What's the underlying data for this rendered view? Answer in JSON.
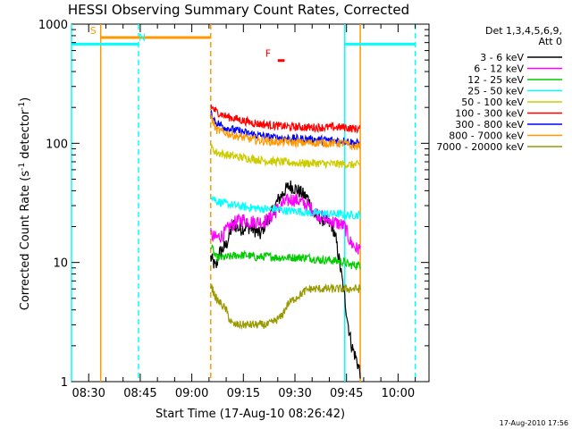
{
  "chart_data": {
    "type": "line",
    "title": "HESSI Observing Summary Count Rates, Corrected",
    "xlabel": "Start Time (17-Aug-10 08:26:42)",
    "ylabel_main": "Corrected Count Rate (s",
    "ylabel_sup1": "-1",
    "ylabel_mid": " detector",
    "ylabel_sup2": "-1",
    "ylabel_end": ")",
    "yscale": "log",
    "ylim": [
      1,
      1000
    ],
    "xlim_minutes": [
      505,
      609
    ],
    "x_ticks": [
      {
        "m": 510,
        "label": "08:30"
      },
      {
        "m": 525,
        "label": "08:45"
      },
      {
        "m": 540,
        "label": "09:00"
      },
      {
        "m": 555,
        "label": "09:15"
      },
      {
        "m": 570,
        "label": "09:30"
      },
      {
        "m": 585,
        "label": "09:45"
      },
      {
        "m": 600,
        "label": "10:00"
      }
    ],
    "y_ticks": [
      {
        "v": 1,
        "label": "1"
      },
      {
        "v": 10,
        "label": "10"
      },
      {
        "v": 100,
        "label": "100"
      },
      {
        "v": 1000,
        "label": "1000"
      }
    ],
    "legend_header": [
      "Det 1,3,4,5,6,9,",
      "Att 0"
    ],
    "series": [
      {
        "name": "3 - 6 keV",
        "color": "#000000",
        "points": [
          [
            545.5,
            11
          ],
          [
            547,
            9
          ],
          [
            548,
            12
          ],
          [
            550,
            14
          ],
          [
            552,
            21
          ],
          [
            554,
            19
          ],
          [
            556,
            20
          ],
          [
            558,
            19
          ],
          [
            560,
            17
          ],
          [
            561,
            20
          ],
          [
            563,
            25
          ],
          [
            565,
            33
          ],
          [
            567,
            40
          ],
          [
            568.5,
            44
          ],
          [
            570,
            42
          ],
          [
            572,
            38
          ],
          [
            574,
            34
          ],
          [
            575,
            26
          ],
          [
            577,
            24
          ],
          [
            579,
            22
          ],
          [
            581,
            20
          ],
          [
            582,
            15
          ],
          [
            583,
            10
          ],
          [
            584.5,
            5
          ],
          [
            585.5,
            3
          ],
          [
            586.5,
            2
          ],
          [
            588,
            1.5
          ],
          [
            589,
            1.2
          ]
        ]
      },
      {
        "name": "6 - 12 keV",
        "color": "#ff00ff",
        "points": [
          [
            545.5,
            17
          ],
          [
            547,
            16
          ],
          [
            549,
            17
          ],
          [
            551,
            20
          ],
          [
            553,
            22
          ],
          [
            555,
            23
          ],
          [
            557,
            22
          ],
          [
            559,
            22
          ],
          [
            561,
            22
          ],
          [
            563,
            24
          ],
          [
            565,
            28
          ],
          [
            567,
            32
          ],
          [
            569,
            34
          ],
          [
            571,
            33
          ],
          [
            573,
            31
          ],
          [
            575,
            28
          ],
          [
            577,
            25
          ],
          [
            579,
            23
          ],
          [
            581,
            22
          ],
          [
            583,
            21
          ],
          [
            584.5,
            20
          ],
          [
            586,
            15
          ],
          [
            588,
            13
          ],
          [
            589,
            13
          ]
        ]
      },
      {
        "name": "12 - 25 keV",
        "color": "#00cc00",
        "points": [
          [
            545.5,
            14
          ],
          [
            547,
            11
          ],
          [
            550,
            11
          ],
          [
            553,
            11.5
          ],
          [
            556,
            11.5
          ],
          [
            559,
            11
          ],
          [
            562,
            11.3
          ],
          [
            565,
            11
          ],
          [
            568,
            11
          ],
          [
            571,
            11
          ],
          [
            574,
            11
          ],
          [
            577,
            10.5
          ],
          [
            580,
            10.5
          ],
          [
            583,
            10.2
          ],
          [
            584.5,
            10
          ],
          [
            586,
            9.5
          ],
          [
            588,
            9.5
          ],
          [
            589,
            9.5
          ]
        ]
      },
      {
        "name": "25 - 50 keV",
        "color": "#00ffff",
        "points": [
          [
            545.5,
            37
          ],
          [
            547,
            33
          ],
          [
            550,
            31
          ],
          [
            553,
            30
          ],
          [
            556,
            29
          ],
          [
            559,
            28.5
          ],
          [
            562,
            28
          ],
          [
            565,
            28
          ],
          [
            568,
            27
          ],
          [
            571,
            27
          ],
          [
            574,
            26
          ],
          [
            577,
            26
          ],
          [
            580,
            25.5
          ],
          [
            583,
            25.5
          ],
          [
            584.5,
            25
          ],
          [
            586,
            25
          ],
          [
            588,
            25
          ],
          [
            589,
            25
          ]
        ]
      },
      {
        "name": "50 - 100 keV",
        "color": "#cccc00",
        "points": [
          [
            545.5,
            93
          ],
          [
            547,
            84
          ],
          [
            550,
            80
          ],
          [
            553,
            77
          ],
          [
            556,
            75
          ],
          [
            559,
            73
          ],
          [
            562,
            71
          ],
          [
            565,
            70
          ],
          [
            568,
            69
          ],
          [
            571,
            68
          ],
          [
            574,
            68
          ],
          [
            577,
            68
          ],
          [
            580,
            67
          ],
          [
            583,
            67
          ],
          [
            584.5,
            67
          ],
          [
            586,
            66
          ],
          [
            588,
            66
          ],
          [
            589,
            66
          ]
        ]
      },
      {
        "name": "100 - 300 keV",
        "color": "#ff0000",
        "points": [
          [
            545.5,
            205
          ],
          [
            547,
            185
          ],
          [
            550,
            168
          ],
          [
            553,
            160
          ],
          [
            556,
            152
          ],
          [
            559,
            146
          ],
          [
            562,
            143
          ],
          [
            565,
            140
          ],
          [
            568,
            138
          ],
          [
            571,
            137
          ],
          [
            574,
            136
          ],
          [
            577,
            136
          ],
          [
            580,
            136
          ],
          [
            583,
            136
          ],
          [
            584.5,
            136
          ],
          [
            586,
            134
          ],
          [
            588,
            132
          ],
          [
            589,
            132
          ]
        ]
      },
      {
        "name": "300 - 800 keV",
        "color": "#0000ff",
        "points": [
          [
            545.5,
            178
          ],
          [
            547,
            150
          ],
          [
            550,
            135
          ],
          [
            553,
            128
          ],
          [
            556,
            122
          ],
          [
            559,
            117
          ],
          [
            562,
            113
          ],
          [
            565,
            111
          ],
          [
            568,
            110
          ],
          [
            571,
            109
          ],
          [
            574,
            108
          ],
          [
            577,
            107
          ],
          [
            580,
            106
          ],
          [
            583,
            105
          ],
          [
            584.5,
            105
          ],
          [
            586,
            103
          ],
          [
            588,
            100
          ],
          [
            589,
            99
          ]
        ]
      },
      {
        "name": "800 - 7000 keV",
        "color": "#ff9900",
        "points": [
          [
            545.5,
            170
          ],
          [
            547,
            130
          ],
          [
            550,
            122
          ],
          [
            553,
            115
          ],
          [
            556,
            110
          ],
          [
            559,
            106
          ],
          [
            562,
            104
          ],
          [
            565,
            103
          ],
          [
            568,
            102
          ],
          [
            571,
            101
          ],
          [
            574,
            101
          ],
          [
            577,
            101
          ],
          [
            580,
            100
          ],
          [
            583,
            100
          ],
          [
            584.5,
            100
          ],
          [
            586,
            95
          ],
          [
            588,
            94
          ],
          [
            589,
            94
          ]
        ]
      },
      {
        "name": "7000 - 20000 keV",
        "color": "#999900",
        "points": [
          [
            545.5,
            6.5
          ],
          [
            547,
            5
          ],
          [
            548.5,
            4.5
          ],
          [
            550,
            4
          ],
          [
            551,
            3.3
          ],
          [
            552,
            3
          ],
          [
            554,
            3
          ],
          [
            556,
            3
          ],
          [
            558,
            3
          ],
          [
            560,
            3
          ],
          [
            562,
            3
          ],
          [
            564,
            3.2
          ],
          [
            566,
            3.5
          ],
          [
            568,
            4.5
          ],
          [
            570,
            5
          ],
          [
            572,
            5.5
          ],
          [
            574,
            6
          ],
          [
            576,
            6
          ],
          [
            578,
            6
          ],
          [
            580,
            6
          ],
          [
            582,
            6
          ],
          [
            584,
            6
          ],
          [
            584.5,
            6
          ],
          [
            586,
            6
          ],
          [
            588,
            6
          ],
          [
            589,
            6
          ]
        ]
      }
    ],
    "annotations": [
      {
        "label": "S",
        "color": "#ff9900",
        "x_start": 513.5,
        "x_end": 545.5,
        "y": 772
      },
      {
        "label": "N",
        "color": "#00ffff",
        "x_start": 505,
        "x_end": 524.5,
        "y": 680
      },
      {
        "label": "N",
        "color": "#00ffff",
        "x_start": 584.5,
        "x_end": 605,
        "y": 680
      },
      {
        "label": "F",
        "color": "#ff0000",
        "x_start": 565,
        "x_end": 567,
        "y": 495
      }
    ],
    "vertical_markers": [
      {
        "x": 513.5,
        "color": "#ff9900",
        "style": "solid"
      },
      {
        "x": 545.5,
        "color": "#ff9900",
        "style": "dashed"
      },
      {
        "x": 589,
        "color": "#ff9900",
        "style": "solid"
      },
      {
        "x": 524.5,
        "color": "#00ffff",
        "style": "dashed"
      },
      {
        "x": 605,
        "color": "#00ffff",
        "style": "dashed"
      },
      {
        "x": 505,
        "color": "#00ffff",
        "style": "solid"
      },
      {
        "x": 584.5,
        "color": "#00ffff",
        "style": "solid"
      }
    ]
  },
  "footer": {
    "timestamp": "17-Aug-2010 17:56"
  }
}
